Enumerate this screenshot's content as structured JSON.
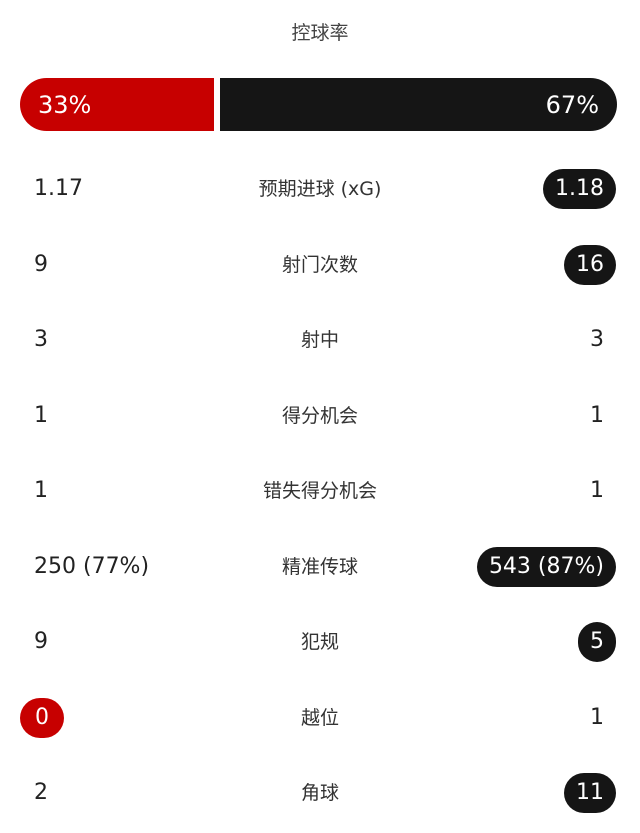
{
  "title": "控球率",
  "possession": {
    "home": "33%",
    "away": "67%",
    "home_value": 33,
    "away_value": 67,
    "home_color": "#c70000",
    "away_color": "#151515"
  },
  "stats": [
    {
      "label": "预期进球 (xG)",
      "home": "1.17",
      "away": "1.18",
      "highlight": "away"
    },
    {
      "label": "射门次数",
      "home": "9",
      "away": "16",
      "highlight": "away"
    },
    {
      "label": "射中",
      "home": "3",
      "away": "3",
      "highlight": ""
    },
    {
      "label": "得分机会",
      "home": "1",
      "away": "1",
      "highlight": ""
    },
    {
      "label": "错失得分机会",
      "home": "1",
      "away": "1",
      "highlight": ""
    },
    {
      "label": "精准传球",
      "home": "250 (77%)",
      "away": "543 (87%)",
      "highlight": "away"
    },
    {
      "label": "犯规",
      "home": "9",
      "away": "5",
      "highlight": "away"
    },
    {
      "label": "越位",
      "home": "0",
      "away": "1",
      "highlight": "home"
    },
    {
      "label": "角球",
      "home": "2",
      "away": "11",
      "highlight": "away"
    }
  ]
}
